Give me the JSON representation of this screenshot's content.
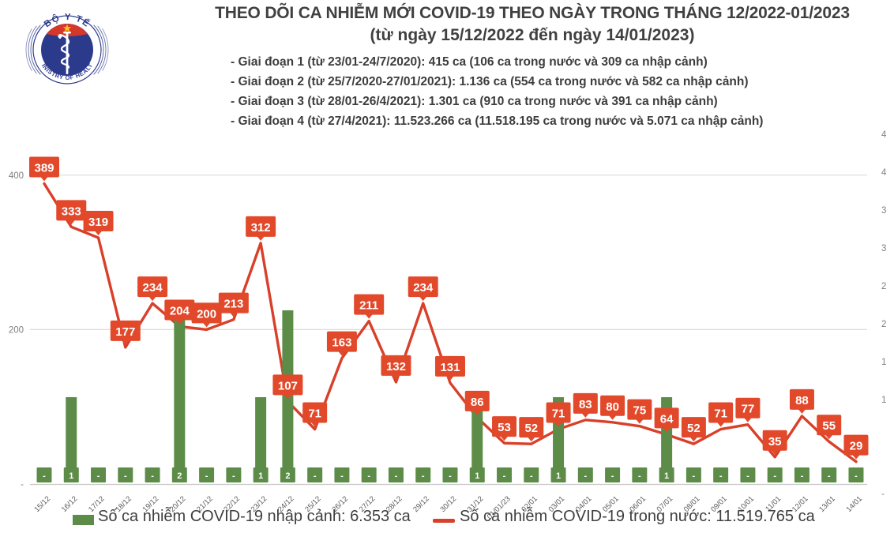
{
  "logo": {
    "top_text": "BỘ Y TẾ",
    "bottom_text": "MINISTRY OF HEALTH",
    "navy": "#2c3a8c",
    "red": "#d6372b",
    "star_yellow": "#f8c81c"
  },
  "header": {
    "title_line1": "THEO DÕI CA NHIỄM MỚI COVID-19 THEO NGÀY TRONG THÁNG 12/2022-01/2023",
    "title_line2": "(từ ngày 15/12/2022 đến ngày 14/01/2023)",
    "bullets": [
      "- Giai đoạn 1 (từ 23/01-24/7/2020): 415 ca (106 ca trong nước và 309 ca nhập cảnh)",
      "- Giai đoạn 2 (từ 25/7/2020-27/01/2021): 1.136 ca (554 ca trong nước và 582 ca nhập cảnh)",
      "- Giai đoạn 3 (từ 28/01-26/4/2021): 1.301 ca (910 ca trong nước và 391 ca nhập cảnh)",
      "- Giai đoạn 4 (từ 27/4/2021): 11.523.266 ca (11.518.195 ca trong nước và 5.071 ca nhập cảnh)"
    ]
  },
  "chart_data": {
    "type": "combo",
    "categories": [
      "15/12",
      "16/12",
      "17/12",
      "18/12",
      "19/12",
      "20/12",
      "21/12",
      "22/12",
      "23/12",
      "24/12",
      "25/12",
      "26/12",
      "27/12",
      "28/12",
      "29/12",
      "30/12",
      "31/12",
      "01/01/23",
      "02/01",
      "03/01",
      "04/01",
      "05/01",
      "06/01",
      "07/01",
      "08/01",
      "09/01",
      "10/01",
      "11/01",
      "12/01",
      "13/01",
      "14/01"
    ],
    "series": [
      {
        "name": "Số ca nhiễm COVID-19 nhập cảnh",
        "type": "bar",
        "axis": "right",
        "color": "#5d8c48",
        "values": [
          0,
          1,
          0,
          0,
          0,
          2,
          0,
          0,
          1,
          2,
          0,
          0,
          0,
          0,
          0,
          0,
          1,
          0,
          0,
          1,
          0,
          0,
          0,
          1,
          0,
          0,
          0,
          0,
          0,
          0,
          0
        ],
        "labels": [
          "-",
          "1",
          "-",
          "-",
          "-",
          "2",
          "-",
          "-",
          "1",
          "2",
          "-",
          "-",
          "-",
          "-",
          "-",
          "-",
          "1",
          "-",
          "-",
          "1",
          "-",
          "-",
          "-",
          "1",
          "-",
          "-",
          "-",
          "-",
          "-",
          "-",
          "-"
        ]
      },
      {
        "name": "Số ca nhiễm COVID-19 trong nước",
        "type": "line",
        "axis": "left",
        "color": "#d8402a",
        "label_box_color": "#e2492b",
        "values": [
          389,
          333,
          319,
          177,
          234,
          204,
          200,
          213,
          312,
          107,
          71,
          163,
          211,
          132,
          234,
          131,
          86,
          53,
          52,
          71,
          83,
          80,
          75,
          64,
          52,
          71,
          77,
          35,
          88,
          55,
          29
        ]
      }
    ],
    "left_axis": {
      "tick_labels": [
        "400",
        "200",
        "-"
      ],
      "tick_values": [
        400,
        200,
        0
      ],
      "ylim": [
        0,
        450
      ]
    },
    "right_axis": {
      "tick_labels": [
        "4",
        "4",
        "3",
        "3",
        "2",
        "2",
        "1",
        "1",
        "-"
      ]
    },
    "grid": "horizontal",
    "axis_text_color": "#7f7f7f",
    "date_text_color": "#595959",
    "gridline_color": "#dcdcdc"
  },
  "legend": {
    "bar": {
      "label": "Số ca nhiễm COVID-19 nhập cảnh: 6.353 ca",
      "color": "#5d8c48"
    },
    "line": {
      "label": "Số ca nhiễm COVID-19 trong nước: 11.519.765 ca",
      "color": "#d8402a"
    }
  }
}
